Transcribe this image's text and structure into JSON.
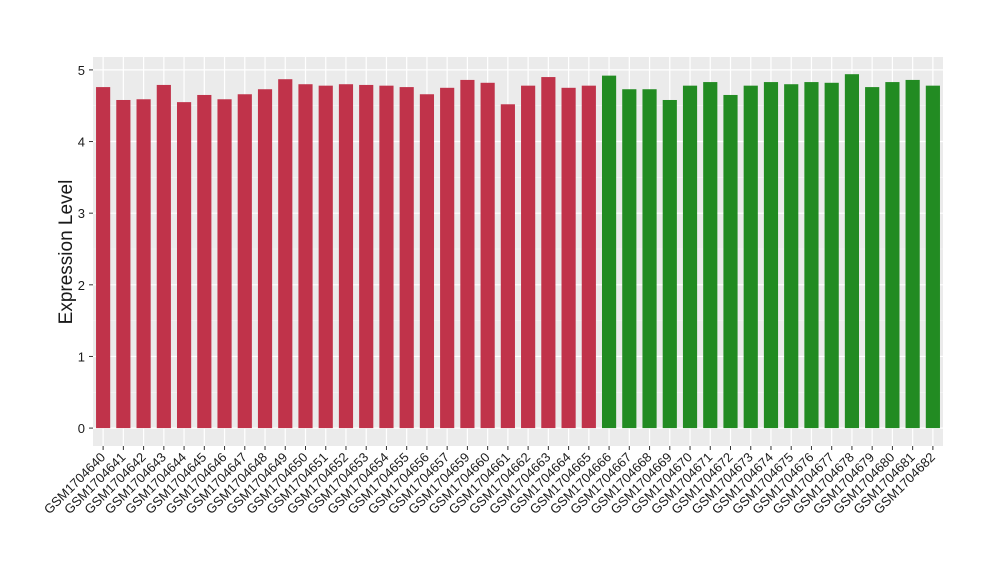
{
  "chart_data": {
    "type": "bar",
    "y_label": "Expression Level",
    "categories": [
      "GSM1704640",
      "GSM1704641",
      "GSM1704642",
      "GSM1704643",
      "GSM1704644",
      "GSM1704645",
      "GSM1704646",
      "GSM1704647",
      "GSM1704648",
      "GSM1704649",
      "GSM1704650",
      "GSM1704651",
      "GSM1704652",
      "GSM1704653",
      "GSM1704654",
      "GSM1704655",
      "GSM1704656",
      "GSM1704657",
      "GSM1704659",
      "GSM1704660",
      "GSM1704661",
      "GSM1704662",
      "GSM1704663",
      "GSM1704664",
      "GSM1704665",
      "GSM1704666",
      "GSM1704667",
      "GSM1704668",
      "GSM1704669",
      "GSM1704670",
      "GSM1704671",
      "GSM1704672",
      "GSM1704673",
      "GSM1704674",
      "GSM1704675",
      "GSM1704676",
      "GSM1704677",
      "GSM1704678",
      "GSM1704679",
      "GSM1704680",
      "GSM1704681",
      "GSM1704682"
    ],
    "values": [
      4.76,
      4.58,
      4.59,
      4.79,
      4.55,
      4.65,
      4.59,
      4.66,
      4.73,
      4.87,
      4.8,
      4.78,
      4.8,
      4.79,
      4.78,
      4.76,
      4.66,
      4.75,
      4.86,
      4.82,
      4.52,
      4.78,
      4.9,
      4.75,
      4.78,
      4.92,
      4.73,
      4.73,
      4.58,
      4.78,
      4.83,
      4.65,
      4.78,
      4.83,
      4.8,
      4.83,
      4.82,
      4.94,
      4.76,
      4.83,
      4.86,
      4.78
    ],
    "colors": [
      "#c0334a",
      "#c0334a",
      "#c0334a",
      "#c0334a",
      "#c0334a",
      "#c0334a",
      "#c0334a",
      "#c0334a",
      "#c0334a",
      "#c0334a",
      "#c0334a",
      "#c0334a",
      "#c0334a",
      "#c0334a",
      "#c0334a",
      "#c0334a",
      "#c0334a",
      "#c0334a",
      "#c0334a",
      "#c0334a",
      "#c0334a",
      "#c0334a",
      "#c0334a",
      "#c0334a",
      "#c0334a",
      "#228b22",
      "#228b22",
      "#228b22",
      "#228b22",
      "#228b22",
      "#228b22",
      "#228b22",
      "#228b22",
      "#228b22",
      "#228b22",
      "#228b22",
      "#228b22",
      "#228b22",
      "#228b22",
      "#228b22",
      "#228b22",
      "#228b22"
    ],
    "ylim": [
      -0.25,
      5.18
    ],
    "yticks": [
      0,
      1,
      2,
      3,
      4,
      5
    ],
    "grid": true
  }
}
